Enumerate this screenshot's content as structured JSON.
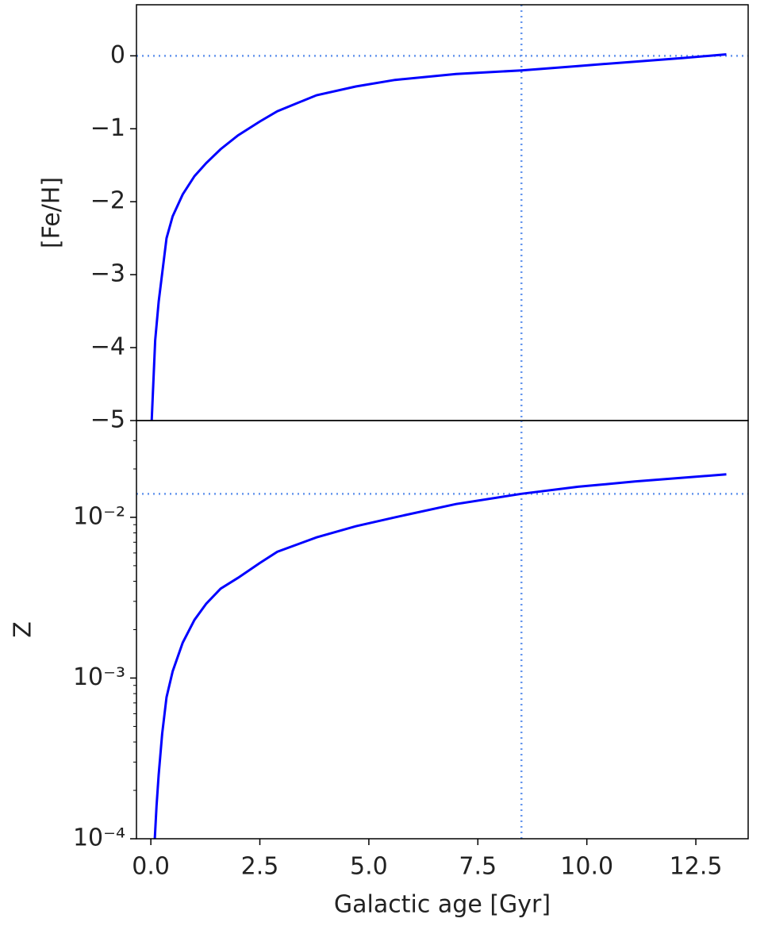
{
  "chart_data": [
    {
      "type": "line",
      "ylabel": "[Fe/H]",
      "xlim": [
        -0.33,
        13.7
      ],
      "ylim": [
        -5,
        0.7
      ],
      "yticks": [
        0,
        {
          "value": -1,
          "label": "−1"
        },
        {
          "value": -2,
          "label": "−2"
        },
        {
          "value": -3,
          "label": "−3"
        },
        {
          "value": -4,
          "label": "−4"
        },
        {
          "value": -5,
          "label": "−5"
        }
      ],
      "x": [
        0.02,
        0.1,
        0.18,
        0.36,
        0.5,
        0.73,
        1.0,
        1.27,
        1.6,
        2.0,
        2.5,
        2.9,
        3.8,
        4.7,
        5.6,
        7.0,
        8.5,
        9.8,
        11.1,
        12.2,
        13.2
      ],
      "values": [
        -5.0,
        -3.9,
        -3.37,
        -2.5,
        -2.2,
        -1.9,
        -1.65,
        -1.47,
        -1.28,
        -1.09,
        -0.9,
        -0.76,
        -0.54,
        -0.42,
        -0.33,
        -0.25,
        -0.2,
        -0.14,
        -0.08,
        -0.03,
        0.02
      ],
      "color": "#0000ff",
      "hlines": [
        0
      ],
      "vlines": [
        8.5
      ],
      "ref_color": "#6495ed"
    },
    {
      "type": "line",
      "ylabel": "Z",
      "xlabel": "Galactic age [Gyr]",
      "log_y": true,
      "xlim": [
        -0.33,
        13.7
      ],
      "ylim": [
        0.0001,
        0.04
      ],
      "yticks": [
        {
          "value": 0.0001,
          "label": "10⁻⁴"
        },
        {
          "value": 0.001,
          "label": "10⁻³"
        },
        {
          "value": 0.01,
          "label": "10⁻²"
        }
      ],
      "yticks_minor": [
        0.0002,
        0.0003,
        0.0004,
        0.0005,
        0.0006,
        0.0007,
        0.0008,
        0.0009,
        0.002,
        0.003,
        0.004,
        0.005,
        0.006,
        0.007,
        0.008,
        0.009,
        0.02,
        0.03
      ],
      "xticks": [
        {
          "value": 0,
          "label": "0.0"
        },
        2.5,
        {
          "value": 5,
          "label": "5.0"
        },
        7.5,
        {
          "value": 10,
          "label": "10.0"
        },
        12.5
      ],
      "x": [
        0.09,
        0.13,
        0.18,
        0.26,
        0.36,
        0.5,
        0.73,
        1.0,
        1.27,
        1.6,
        2.0,
        2.5,
        2.9,
        3.8,
        4.7,
        5.6,
        7.0,
        8.5,
        9.8,
        11.1,
        13.2
      ],
      "values": [
        0.0001,
        0.00016,
        0.00025,
        0.00045,
        0.00076,
        0.0011,
        0.00166,
        0.0023,
        0.0029,
        0.0036,
        0.0042,
        0.0052,
        0.0061,
        0.0075,
        0.0088,
        0.01,
        0.0121,
        0.014,
        0.0155,
        0.0167,
        0.0185
      ],
      "color": "#0000ff",
      "hlines": [
        0.014
      ],
      "vlines": [
        8.5
      ],
      "ref_color": "#6495ed"
    }
  ]
}
